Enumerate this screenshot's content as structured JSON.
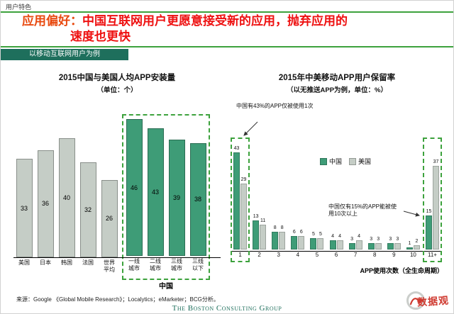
{
  "page": {
    "eyebrow": "用户特色",
    "title_prefix": "应用偏好：",
    "title_line1": "中国互联网用户更愿意接受新的应用，抛弃应用的",
    "title_line2": "速度也更快",
    "banner": "以移动互联网用户为例",
    "source": "来源：Google 《Global Mobile Research》；Localytics；eMarketer；BCG分析。",
    "logo": "The Boston Consulting Group",
    "stamp": "数据观"
  },
  "colors": {
    "accent_green": "#3da23d",
    "bar_green": "#3e9c77",
    "bar_gray": "#c5cdc6",
    "banner_teal": "#1e6f5c",
    "title_red": "#ee1111",
    "title_prefix_red": "#e8490f",
    "stamp_red": "#cf3a30"
  },
  "chart_data": [
    {
      "type": "bar",
      "title": "2015中国与美国人均APP安装量",
      "subtitle": "（单位：个）",
      "categories": [
        "美国",
        "日本",
        "韩国",
        "法国",
        "世界平均",
        "一线城市",
        "二线城市",
        "三线城市",
        "三线以下"
      ],
      "values": [
        33,
        36,
        40,
        32,
        26,
        46,
        43,
        39,
        38
      ],
      "bar_colors": [
        "gray",
        "gray",
        "gray",
        "gray",
        "gray",
        "green",
        "green",
        "green",
        "green"
      ],
      "group_label": "中国",
      "china_group_start": 5,
      "xlabel": "",
      "ylabel": "",
      "ylim": [
        0,
        50
      ],
      "grid": false
    },
    {
      "type": "bar",
      "title": "2015年中美移动APP用户保留率",
      "subtitle": "（以无推送APP为例，单位：%）",
      "categories": [
        "1",
        "2",
        "3",
        "4",
        "5",
        "6",
        "7",
        "8",
        "9",
        "10",
        "11+"
      ],
      "series": [
        {
          "name": "中国",
          "color": "green",
          "values": [
            43,
            13,
            8,
            6,
            5,
            4,
            3,
            3,
            3,
            1,
            15
          ]
        },
        {
          "name": "美国",
          "color": "gray",
          "values": [
            29,
            11,
            8,
            6,
            5,
            4,
            4,
            3,
            3,
            2,
            37
          ]
        }
      ],
      "annotations": [
        "中国有43%的APP仅被使用1次",
        "中国仅有15%的APP能被使用10次以上"
      ],
      "highlight_categories": [
        "1",
        "11+"
      ],
      "xlabel": "APP使用次数（全生命周期）",
      "ylabel": "",
      "ylim": [
        0,
        50
      ],
      "legend_position": "inside-top-center",
      "grid": false
    }
  ]
}
